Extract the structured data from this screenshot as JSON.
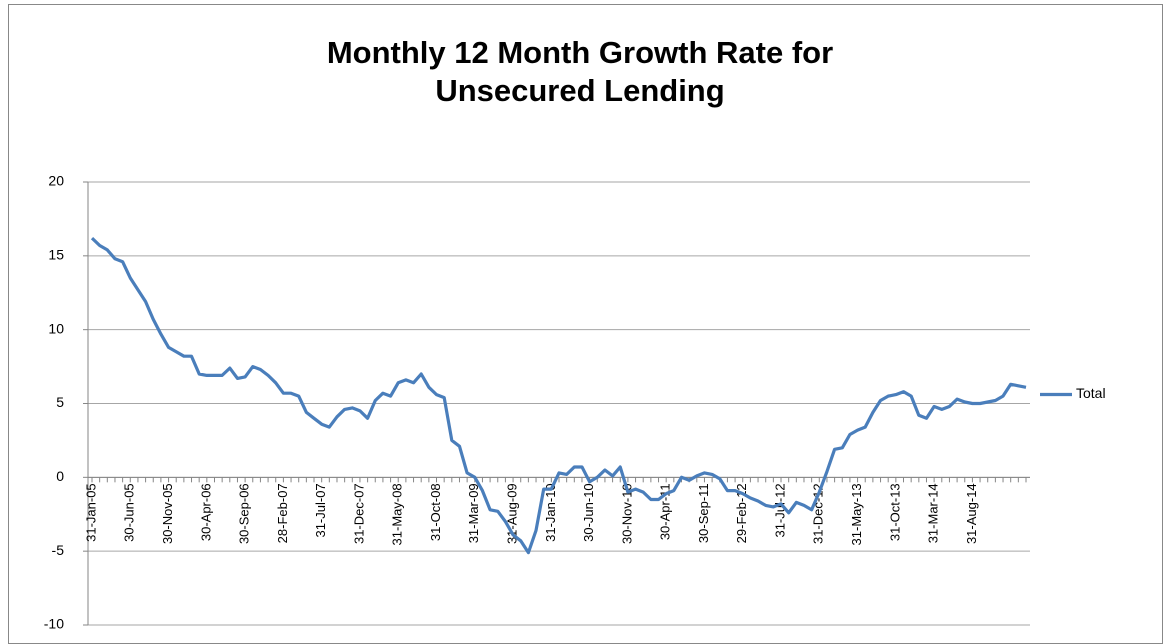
{
  "chart_data": {
    "type": "line",
    "title": "Monthly 12 Month Growth Rate for Unsecured Lending",
    "categories": [
      "31-Jan-05",
      null,
      null,
      null,
      null,
      "30-Jun-05",
      null,
      null,
      null,
      null,
      "30-Nov-05",
      null,
      null,
      null,
      null,
      "30-Apr-06",
      null,
      null,
      null,
      null,
      "30-Sep-06",
      null,
      null,
      null,
      null,
      "28-Feb-07",
      null,
      null,
      null,
      null,
      "31-Jul-07",
      null,
      null,
      null,
      null,
      "31-Dec-07",
      null,
      null,
      null,
      null,
      "31-May-08",
      null,
      null,
      null,
      null,
      "31-Oct-08",
      null,
      null,
      null,
      null,
      "31-Mar-09",
      null,
      null,
      null,
      null,
      "31-Aug-09",
      null,
      null,
      null,
      null,
      "31-Jan-10",
      null,
      null,
      null,
      null,
      "30-Jun-10",
      null,
      null,
      null,
      null,
      "30-Nov-10",
      null,
      null,
      null,
      null,
      "30-Apr-11",
      null,
      null,
      null,
      null,
      "30-Sep-11",
      null,
      null,
      null,
      null,
      "29-Feb-12",
      null,
      null,
      null,
      null,
      "31-Jul-12",
      null,
      null,
      null,
      null,
      "31-Dec-12",
      null,
      null,
      null,
      null,
      "31-May-13",
      null,
      null,
      null,
      null,
      "31-Oct-13",
      null,
      null,
      null,
      null,
      "31-Mar-14",
      null,
      null,
      null,
      null,
      "31-Aug-14",
      null,
      null,
      null,
      null,
      null,
      null,
      null
    ],
    "series": [
      {
        "name": "Total",
        "color": "#4a7ebb",
        "values": [
          16.2,
          15.7,
          15.4,
          14.8,
          14.6,
          13.5,
          12.7,
          11.9,
          10.7,
          9.7,
          8.8,
          8.5,
          8.2,
          8.2,
          7.0,
          6.9,
          6.9,
          6.9,
          7.4,
          6.7,
          6.8,
          7.5,
          7.3,
          6.9,
          6.4,
          5.7,
          5.7,
          5.5,
          4.4,
          4.0,
          3.6,
          3.4,
          4.1,
          4.6,
          4.7,
          4.5,
          4.0,
          5.2,
          5.7,
          5.5,
          6.4,
          6.6,
          6.4,
          7.0,
          6.1,
          5.6,
          5.4,
          2.5,
          2.1,
          0.3,
          0.0,
          -0.9,
          -2.2,
          -2.3,
          -3.0,
          -3.9,
          -4.3,
          -5.1,
          -3.6,
          -0.8,
          -0.8,
          0.3,
          0.2,
          0.7,
          0.7,
          -0.3,
          0.0,
          0.5,
          0.1,
          0.7,
          -1.0,
          -0.8,
          -1.0,
          -1.5,
          -1.5,
          -1.1,
          -0.9,
          0.0,
          -0.2,
          0.1,
          0.3,
          0.2,
          -0.1,
          -0.9,
          -0.9,
          -1.1,
          -1.4,
          -1.6,
          -1.9,
          -2.0,
          -1.8,
          -2.4,
          -1.7,
          -1.9,
          -2.2,
          -1.0,
          0.4,
          1.9,
          2.0,
          2.9,
          3.2,
          3.4,
          4.4,
          5.2,
          5.5,
          5.6,
          5.8,
          5.5,
          4.2,
          4.0,
          4.8,
          4.6,
          4.8,
          5.3,
          5.1,
          5.0,
          5.0,
          5.1,
          5.2,
          5.5,
          6.3,
          6.2,
          6.1
        ]
      }
    ],
    "ylim": [
      -10,
      20
    ],
    "yticks": [
      -10,
      -5,
      0,
      5,
      10,
      15,
      20
    ],
    "grid": true,
    "legend": "right"
  }
}
